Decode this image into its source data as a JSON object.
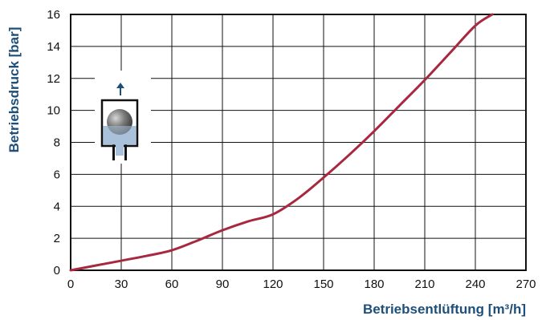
{
  "chart_data": {
    "type": "line",
    "xlabel": "Betriebsentlüftung [m³/h]",
    "ylabel": "Betriebsdruck [bar]",
    "xlim": [
      0,
      270
    ],
    "ylim": [
      0,
      16
    ],
    "x_ticks": [
      "0",
      "30",
      "60",
      "90",
      "120",
      "150",
      "180",
      "210",
      "240",
      "270"
    ],
    "y_ticks": [
      "0",
      "2",
      "4",
      "6",
      "8",
      "10",
      "12",
      "14",
      "16"
    ],
    "grid": true,
    "series": [
      {
        "color": "#a8283f",
        "x": [
          0,
          15,
          30,
          45,
          60,
          75,
          90,
          105,
          120,
          135,
          150,
          165,
          180,
          195,
          210,
          225,
          240,
          250
        ],
        "y": [
          0,
          0.3,
          0.6,
          0.9,
          1.25,
          1.85,
          2.5,
          3.05,
          3.5,
          4.5,
          5.8,
          7.2,
          8.7,
          10.3,
          11.9,
          13.6,
          15.3,
          16
        ]
      }
    ]
  },
  "colors": {
    "axis_title": "#1d4f7a",
    "grid": "#111111",
    "icon_arrow": "#1d4f7a",
    "icon_water": "#a9c1db"
  },
  "icon": "float-valve-icon"
}
